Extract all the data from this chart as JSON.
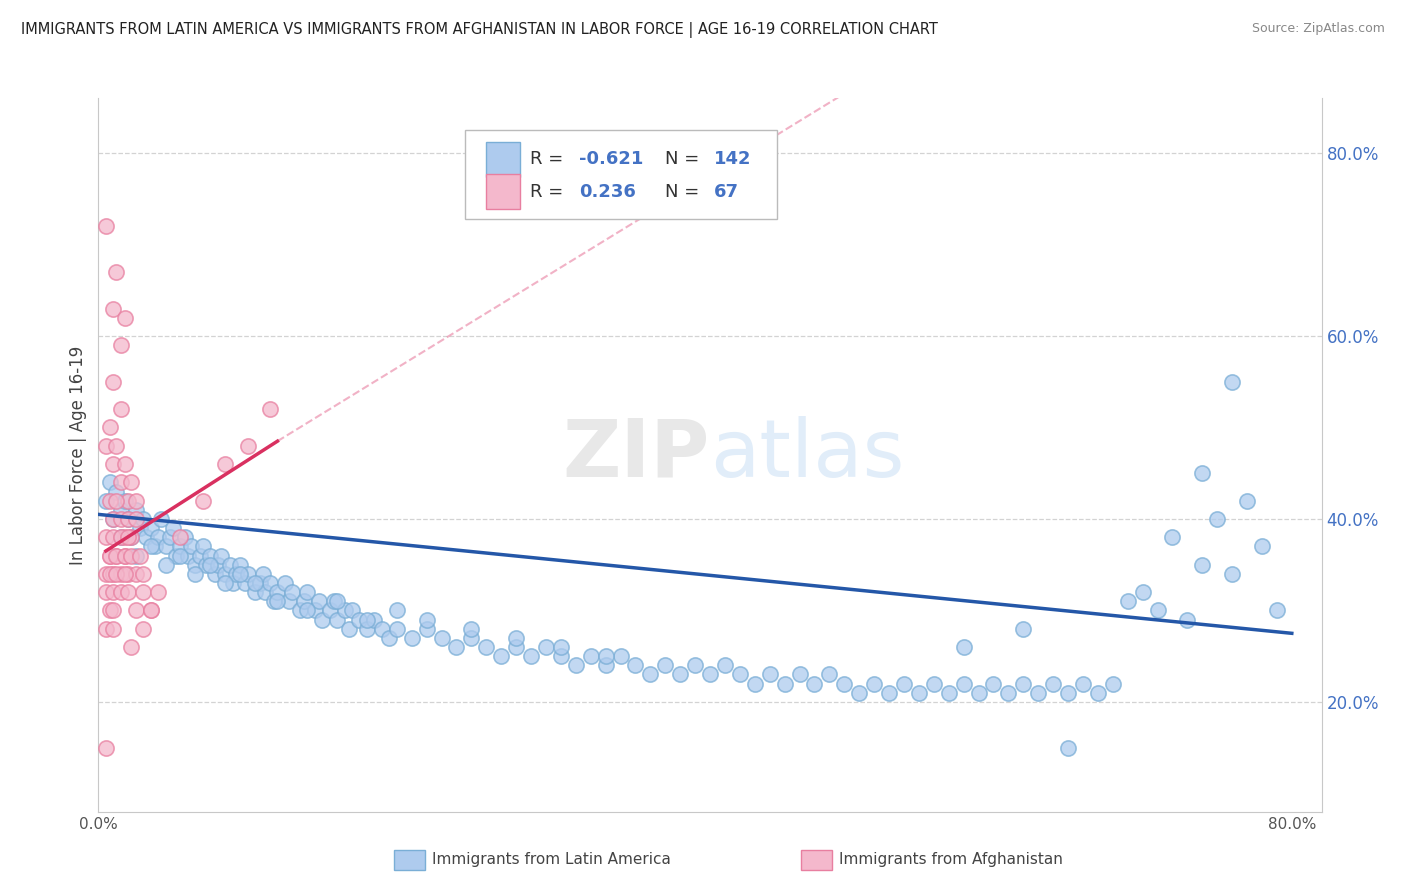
{
  "title": "IMMIGRANTS FROM LATIN AMERICA VS IMMIGRANTS FROM AFGHANISTAN IN LABOR FORCE | AGE 16-19 CORRELATION CHART",
  "source": "Source: ZipAtlas.com",
  "ylabel": "In Labor Force | Age 16-19",
  "xlim": [
    0.0,
    0.82
  ],
  "ylim": [
    0.08,
    0.86
  ],
  "right_ytick_vals": [
    0.2,
    0.4,
    0.6,
    0.8
  ],
  "right_yticklabels": [
    "20.0%",
    "40.0%",
    "60.0%",
    "80.0%"
  ],
  "blue_color": "#aecbee",
  "blue_edge_color": "#7aaed6",
  "pink_color": "#f4b8cc",
  "pink_edge_color": "#e87fa0",
  "blue_line_color": "#2457a8",
  "pink_line_color": "#d93060",
  "pink_dash_color": "#e87fa0",
  "background_color": "#ffffff",
  "grid_color": "#c8c8c8",
  "watermark": "ZIPatlas",
  "blue_scatter": [
    [
      0.005,
      0.42
    ],
    [
      0.008,
      0.44
    ],
    [
      0.01,
      0.4
    ],
    [
      0.012,
      0.43
    ],
    [
      0.015,
      0.41
    ],
    [
      0.018,
      0.42
    ],
    [
      0.02,
      0.4
    ],
    [
      0.022,
      0.38
    ],
    [
      0.025,
      0.41
    ],
    [
      0.028,
      0.39
    ],
    [
      0.03,
      0.4
    ],
    [
      0.032,
      0.38
    ],
    [
      0.035,
      0.39
    ],
    [
      0.038,
      0.37
    ],
    [
      0.04,
      0.38
    ],
    [
      0.042,
      0.4
    ],
    [
      0.045,
      0.37
    ],
    [
      0.048,
      0.38
    ],
    [
      0.05,
      0.39
    ],
    [
      0.052,
      0.36
    ],
    [
      0.055,
      0.37
    ],
    [
      0.058,
      0.38
    ],
    [
      0.06,
      0.36
    ],
    [
      0.062,
      0.37
    ],
    [
      0.065,
      0.35
    ],
    [
      0.068,
      0.36
    ],
    [
      0.07,
      0.37
    ],
    [
      0.072,
      0.35
    ],
    [
      0.075,
      0.36
    ],
    [
      0.078,
      0.34
    ],
    [
      0.08,
      0.35
    ],
    [
      0.082,
      0.36
    ],
    [
      0.085,
      0.34
    ],
    [
      0.088,
      0.35
    ],
    [
      0.09,
      0.33
    ],
    [
      0.092,
      0.34
    ],
    [
      0.095,
      0.35
    ],
    [
      0.098,
      0.33
    ],
    [
      0.1,
      0.34
    ],
    [
      0.105,
      0.32
    ],
    [
      0.108,
      0.33
    ],
    [
      0.11,
      0.34
    ],
    [
      0.112,
      0.32
    ],
    [
      0.115,
      0.33
    ],
    [
      0.118,
      0.31
    ],
    [
      0.12,
      0.32
    ],
    [
      0.125,
      0.33
    ],
    [
      0.128,
      0.31
    ],
    [
      0.13,
      0.32
    ],
    [
      0.135,
      0.3
    ],
    [
      0.138,
      0.31
    ],
    [
      0.14,
      0.32
    ],
    [
      0.145,
      0.3
    ],
    [
      0.148,
      0.31
    ],
    [
      0.15,
      0.29
    ],
    [
      0.155,
      0.3
    ],
    [
      0.158,
      0.31
    ],
    [
      0.16,
      0.29
    ],
    [
      0.165,
      0.3
    ],
    [
      0.168,
      0.28
    ],
    [
      0.17,
      0.3
    ],
    [
      0.175,
      0.29
    ],
    [
      0.18,
      0.28
    ],
    [
      0.185,
      0.29
    ],
    [
      0.19,
      0.28
    ],
    [
      0.195,
      0.27
    ],
    [
      0.2,
      0.28
    ],
    [
      0.21,
      0.27
    ],
    [
      0.22,
      0.28
    ],
    [
      0.23,
      0.27
    ],
    [
      0.24,
      0.26
    ],
    [
      0.25,
      0.27
    ],
    [
      0.26,
      0.26
    ],
    [
      0.27,
      0.25
    ],
    [
      0.28,
      0.26
    ],
    [
      0.29,
      0.25
    ],
    [
      0.3,
      0.26
    ],
    [
      0.31,
      0.25
    ],
    [
      0.32,
      0.24
    ],
    [
      0.33,
      0.25
    ],
    [
      0.34,
      0.24
    ],
    [
      0.35,
      0.25
    ],
    [
      0.36,
      0.24
    ],
    [
      0.37,
      0.23
    ],
    [
      0.38,
      0.24
    ],
    [
      0.39,
      0.23
    ],
    [
      0.4,
      0.24
    ],
    [
      0.41,
      0.23
    ],
    [
      0.42,
      0.24
    ],
    [
      0.43,
      0.23
    ],
    [
      0.44,
      0.22
    ],
    [
      0.45,
      0.23
    ],
    [
      0.46,
      0.22
    ],
    [
      0.47,
      0.23
    ],
    [
      0.48,
      0.22
    ],
    [
      0.49,
      0.23
    ],
    [
      0.5,
      0.22
    ],
    [
      0.51,
      0.21
    ],
    [
      0.52,
      0.22
    ],
    [
      0.53,
      0.21
    ],
    [
      0.54,
      0.22
    ],
    [
      0.55,
      0.21
    ],
    [
      0.56,
      0.22
    ],
    [
      0.57,
      0.21
    ],
    [
      0.58,
      0.22
    ],
    [
      0.59,
      0.21
    ],
    [
      0.6,
      0.22
    ],
    [
      0.61,
      0.21
    ],
    [
      0.62,
      0.22
    ],
    [
      0.63,
      0.21
    ],
    [
      0.64,
      0.22
    ],
    [
      0.65,
      0.21
    ],
    [
      0.66,
      0.22
    ],
    [
      0.67,
      0.21
    ],
    [
      0.68,
      0.22
    ],
    [
      0.69,
      0.31
    ],
    [
      0.7,
      0.32
    ],
    [
      0.71,
      0.3
    ],
    [
      0.72,
      0.38
    ],
    [
      0.73,
      0.29
    ],
    [
      0.74,
      0.35
    ],
    [
      0.75,
      0.4
    ],
    [
      0.76,
      0.34
    ],
    [
      0.77,
      0.42
    ],
    [
      0.78,
      0.37
    ],
    [
      0.79,
      0.3
    ],
    [
      0.015,
      0.38
    ],
    [
      0.025,
      0.36
    ],
    [
      0.035,
      0.37
    ],
    [
      0.045,
      0.35
    ],
    [
      0.055,
      0.36
    ],
    [
      0.065,
      0.34
    ],
    [
      0.075,
      0.35
    ],
    [
      0.085,
      0.33
    ],
    [
      0.095,
      0.34
    ],
    [
      0.105,
      0.33
    ],
    [
      0.12,
      0.31
    ],
    [
      0.14,
      0.3
    ],
    [
      0.16,
      0.31
    ],
    [
      0.18,
      0.29
    ],
    [
      0.2,
      0.3
    ],
    [
      0.22,
      0.29
    ],
    [
      0.25,
      0.28
    ],
    [
      0.28,
      0.27
    ],
    [
      0.31,
      0.26
    ],
    [
      0.34,
      0.25
    ],
    [
      0.58,
      0.26
    ],
    [
      0.62,
      0.28
    ],
    [
      0.65,
      0.15
    ],
    [
      0.76,
      0.55
    ],
    [
      0.74,
      0.45
    ]
  ],
  "pink_scatter": [
    [
      0.005,
      0.72
    ],
    [
      0.01,
      0.63
    ],
    [
      0.012,
      0.67
    ],
    [
      0.015,
      0.59
    ],
    [
      0.018,
      0.62
    ],
    [
      0.01,
      0.55
    ],
    [
      0.015,
      0.52
    ],
    [
      0.005,
      0.48
    ],
    [
      0.008,
      0.5
    ],
    [
      0.01,
      0.46
    ],
    [
      0.012,
      0.48
    ],
    [
      0.015,
      0.44
    ],
    [
      0.018,
      0.46
    ],
    [
      0.02,
      0.42
    ],
    [
      0.022,
      0.44
    ],
    [
      0.025,
      0.42
    ],
    [
      0.008,
      0.42
    ],
    [
      0.01,
      0.4
    ],
    [
      0.012,
      0.42
    ],
    [
      0.015,
      0.4
    ],
    [
      0.018,
      0.38
    ],
    [
      0.02,
      0.4
    ],
    [
      0.022,
      0.38
    ],
    [
      0.025,
      0.4
    ],
    [
      0.005,
      0.38
    ],
    [
      0.008,
      0.36
    ],
    [
      0.01,
      0.38
    ],
    [
      0.012,
      0.36
    ],
    [
      0.015,
      0.38
    ],
    [
      0.018,
      0.36
    ],
    [
      0.02,
      0.38
    ],
    [
      0.005,
      0.34
    ],
    [
      0.008,
      0.36
    ],
    [
      0.01,
      0.34
    ],
    [
      0.012,
      0.36
    ],
    [
      0.015,
      0.34
    ],
    [
      0.018,
      0.36
    ],
    [
      0.02,
      0.34
    ],
    [
      0.022,
      0.36
    ],
    [
      0.025,
      0.34
    ],
    [
      0.028,
      0.36
    ],
    [
      0.03,
      0.34
    ],
    [
      0.005,
      0.32
    ],
    [
      0.008,
      0.34
    ],
    [
      0.01,
      0.32
    ],
    [
      0.012,
      0.34
    ],
    [
      0.015,
      0.32
    ],
    [
      0.018,
      0.34
    ],
    [
      0.02,
      0.32
    ],
    [
      0.025,
      0.3
    ],
    [
      0.03,
      0.32
    ],
    [
      0.035,
      0.3
    ],
    [
      0.04,
      0.32
    ],
    [
      0.005,
      0.28
    ],
    [
      0.008,
      0.3
    ],
    [
      0.01,
      0.28
    ],
    [
      0.03,
      0.28
    ],
    [
      0.035,
      0.3
    ],
    [
      0.055,
      0.38
    ],
    [
      0.07,
      0.42
    ],
    [
      0.085,
      0.46
    ],
    [
      0.1,
      0.48
    ],
    [
      0.115,
      0.52
    ],
    [
      0.005,
      0.15
    ],
    [
      0.01,
      0.3
    ],
    [
      0.022,
      0.26
    ]
  ]
}
